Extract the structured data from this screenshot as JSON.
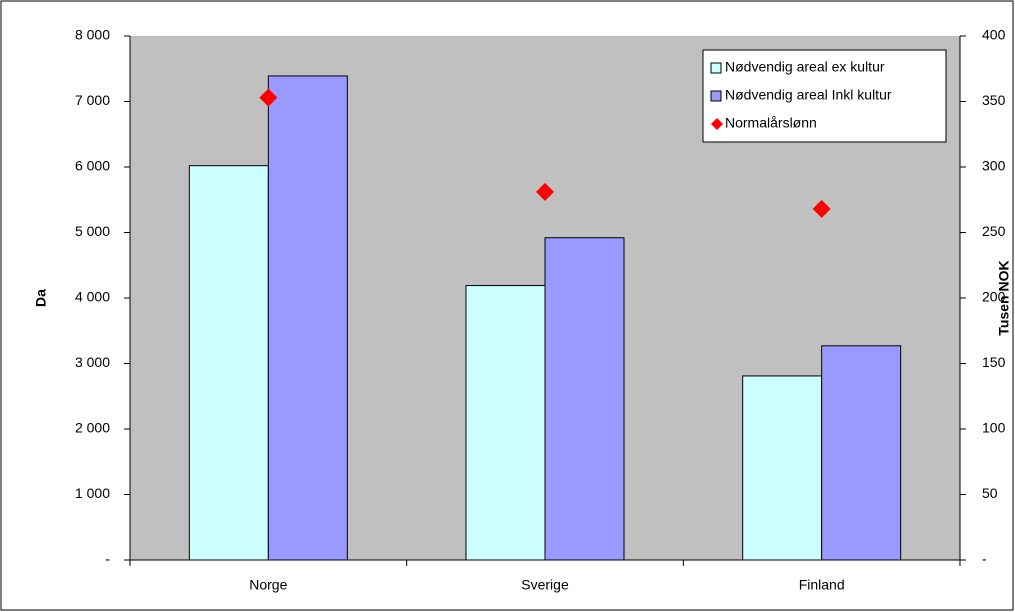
{
  "chart_data": {
    "type": "bar",
    "categories": [
      "Norge",
      "Sverige",
      "Finland"
    ],
    "series": [
      {
        "name": "Nødvendig areal ex kultur",
        "color": "#ccffff",
        "values": [
          6020,
          4190,
          2810
        ]
      },
      {
        "name": "Nødvendig areal Inkl kultur",
        "color": "#9999ff",
        "values": [
          7390,
          4920,
          3270
        ]
      },
      {
        "name": "Normalårslønn",
        "color": "#ff0000",
        "type": "scatter",
        "axis": "y2",
        "values": [
          353,
          281,
          268
        ]
      }
    ],
    "ylabel": "Da",
    "y2label": "Tusen NOK",
    "ylim": [
      0,
      8000
    ],
    "yticks": [
      {
        "value": 0,
        "label": "-"
      },
      {
        "value": 1000,
        "label": "1 000"
      },
      {
        "value": 2000,
        "label": "2 000"
      },
      {
        "value": 3000,
        "label": "3 000"
      },
      {
        "value": 4000,
        "label": "4 000"
      },
      {
        "value": 5000,
        "label": "5 000"
      },
      {
        "value": 6000,
        "label": "6 000"
      },
      {
        "value": 7000,
        "label": "7 000"
      },
      {
        "value": 8000,
        "label": "8 000"
      }
    ],
    "y2lim": [
      0,
      400
    ],
    "y2ticks": [
      {
        "value": 0,
        "label": "-"
      },
      50,
      100,
      150,
      200,
      250,
      300,
      350,
      400
    ],
    "plot_background": "#c0c0c0",
    "legend": "upper right"
  }
}
